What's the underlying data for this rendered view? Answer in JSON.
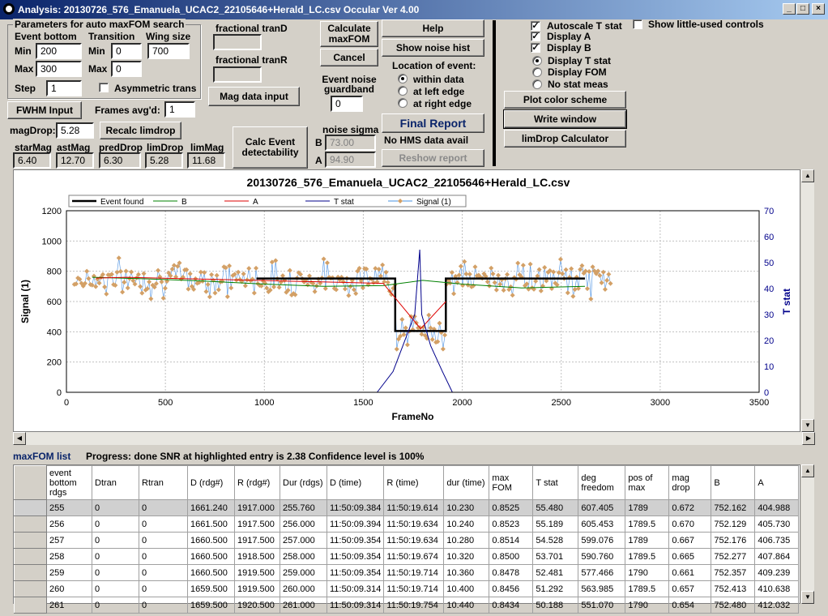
{
  "window": {
    "title": "Analysis: 20130726_576_Emanuela_UCAC2_22105646+Herald_LC.csv  Occular Ver 4.00",
    "min": "_",
    "max": "□",
    "close": "×"
  },
  "params": {
    "group_title": "Parameters for auto maxFOM search",
    "event_bottom": "Event bottom",
    "transition": "Transition",
    "wing_size": "Wing size",
    "min_label": "Min",
    "max_label": "Max",
    "step_label": "Step",
    "eb_min": "200",
    "eb_max": "300",
    "step": "1",
    "tr_min": "0",
    "tr_max": "0",
    "wing": "700",
    "asym_label": "Asymmetric trans",
    "asym_checked": "",
    "fwhm_button": "FWHM Input",
    "frames_avgd_label": "Frames avg'd:",
    "frames_avgd": "1",
    "magdrop_label": "magDrop:",
    "magdrop": "5.28",
    "recalc_button": "Recalc limdrop"
  },
  "mags": {
    "starMag_label": "starMag",
    "starMag": "6.40",
    "astMag_label": "astMag",
    "astMag": "12.70",
    "predDrop_label": "predDrop",
    "predDrop": "6.30",
    "limDrop_label": "limDrop",
    "limDrop": "5.28",
    "limMag_label": "limMag",
    "limMag": "11.68"
  },
  "frac": {
    "tranD_label": "fractional tranD",
    "tranR_label": "fractional tranR",
    "mag_data_button": "Mag data input",
    "calc_event_button": "Calc Event detectability"
  },
  "mid": {
    "calc_maxfom_button": "Calculate maxFOM",
    "cancel_button": "Cancel",
    "guardband_label": "Event noise guardband",
    "guardband": "0",
    "noise_sigma_label": "noise sigma",
    "b_label": "B",
    "a_label": "A",
    "b_sigma": "73.00",
    "a_sigma": "94.90"
  },
  "right1": {
    "help_button": "Help",
    "noise_hist_button": "Show noise hist",
    "location_label": "Location of event:",
    "within": "within data",
    "left_edge": "at left edge",
    "right_edge": "at right edge",
    "final_report_button": "Final Report",
    "no_hms": "No HMS data avail",
    "reshow_button": "Reshow report"
  },
  "right2": {
    "autoscale": "Autoscale T stat",
    "display_a": "Display A",
    "display_b": "Display B",
    "display_tstat": "Display T stat",
    "display_fom": "Display FOM",
    "no_stat": "No stat meas",
    "little_used": "Show little-used controls",
    "check_mark": "✓",
    "plot_color_button": "Plot color scheme",
    "write_window_button": "Write window",
    "limdrop_calc_button": "limDrop Calculator"
  },
  "status": {
    "maxfom_list": "maxFOM list",
    "progress": "Progress: done  SNR at highlighted entry is 2.38   Confidence level is  100%"
  },
  "colors": {
    "title_start": "#0a246a",
    "title_end": "#a6caf0",
    "event": "#000000",
    "B": "#008000",
    "A": "#dd0000",
    "tstat": "#00008b",
    "signal": "#d3a066",
    "signal_line": "#4a90e2",
    "final_report_text": "#0a246a"
  },
  "chart_data": {
    "type": "line",
    "title": "20130726_576_Emanuela_UCAC2_22105646+Herald_LC.csv",
    "xlabel": "FrameNo",
    "ylabel": "Signal (1)",
    "y2label": "T stat",
    "xlim": [
      0,
      3500
    ],
    "ylim": [
      0,
      1200
    ],
    "y2lim": [
      0,
      70
    ],
    "x_ticks": [
      0,
      500,
      1000,
      1500,
      2000,
      2500,
      3000,
      3500
    ],
    "y_ticks": [
      0,
      200,
      400,
      600,
      800,
      1000,
      1200
    ],
    "y2_ticks": [
      0,
      10,
      20,
      30,
      40,
      50,
      60,
      70
    ],
    "legend": [
      "Event found",
      "B",
      "A",
      "T stat",
      "Signal (1)"
    ],
    "legend_position": "top",
    "grid": true,
    "series": [
      {
        "name": "Event found",
        "x": [
          960,
          1661,
          1661,
          1917,
          1917,
          2620
        ],
        "y": [
          752,
          752,
          405,
          405,
          752,
          752
        ]
      },
      {
        "name": "B",
        "x": [
          130,
          400,
          700,
          1000,
          1300,
          1600,
          1800,
          2000,
          2300,
          2620
        ],
        "y": [
          760,
          750,
          735,
          715,
          700,
          705,
          740,
          715,
          690,
          700
        ]
      },
      {
        "name": "A",
        "x": [
          150,
          300,
          1600,
          1790,
          1917
        ],
        "y": [
          755,
          760,
          720,
          420,
          600
        ]
      },
      {
        "name": "T stat",
        "x": [
          1570,
          1650,
          1700,
          1760,
          1785,
          1795,
          1840,
          1900,
          1950
        ],
        "y": [
          0,
          8,
          18,
          30,
          55,
          30,
          18,
          8,
          0
        ]
      }
    ],
    "signal_range": {
      "x_start": 0,
      "x_end": 2750,
      "normal_mean": 750,
      "dip_start": 1661,
      "dip_end": 1917,
      "dip_mean": 405
    }
  },
  "grid": {
    "headers": [
      "event bottom rdgs",
      "Dtran",
      "Rtran",
      "D (rdg#)",
      "R (rdg#)",
      "Dur (rdgs)",
      "D (time)",
      "R (time)",
      "dur (time)",
      "max FOM",
      "T stat",
      "deg freedom",
      "pos of max",
      "mag drop",
      "B",
      "A"
    ],
    "rows": [
      [
        "255",
        "0",
        "0",
        "1661.240",
        "1917.000",
        "255.760",
        "11:50:09.384",
        "11:50:19.614",
        "10.230",
        "0.8525",
        "55.480",
        "607.405",
        "1789",
        "0.672",
        "752.162",
        "404.988"
      ],
      [
        "256",
        "0",
        "0",
        "1661.500",
        "1917.500",
        "256.000",
        "11:50:09.394",
        "11:50:19.634",
        "10.240",
        "0.8523",
        "55.189",
        "605.453",
        "1789.5",
        "0.670",
        "752.129",
        "405.730"
      ],
      [
        "257",
        "0",
        "0",
        "1660.500",
        "1917.500",
        "257.000",
        "11:50:09.354",
        "11:50:19.634",
        "10.280",
        "0.8514",
        "54.528",
        "599.076",
        "1789",
        "0.667",
        "752.176",
        "406.735"
      ],
      [
        "258",
        "0",
        "0",
        "1660.500",
        "1918.500",
        "258.000",
        "11:50:09.354",
        "11:50:19.674",
        "10.320",
        "0.8500",
        "53.701",
        "590.760",
        "1789.5",
        "0.665",
        "752.277",
        "407.864"
      ],
      [
        "259",
        "0",
        "0",
        "1660.500",
        "1919.500",
        "259.000",
        "11:50:09.354",
        "11:50:19.714",
        "10.360",
        "0.8478",
        "52.481",
        "577.466",
        "1790",
        "0.661",
        "752.357",
        "409.239"
      ],
      [
        "260",
        "0",
        "0",
        "1659.500",
        "1919.500",
        "260.000",
        "11:50:09.314",
        "11:50:19.714",
        "10.400",
        "0.8456",
        "51.292",
        "563.985",
        "1789.5",
        "0.657",
        "752.413",
        "410.638"
      ],
      [
        "261",
        "0",
        "0",
        "1659.500",
        "1920.500",
        "261.000",
        "11:50:09.314",
        "11:50:19.754",
        "10.440",
        "0.8434",
        "50.188",
        "551.070",
        "1790",
        "0.654",
        "752.480",
        "412.032"
      ]
    ]
  }
}
